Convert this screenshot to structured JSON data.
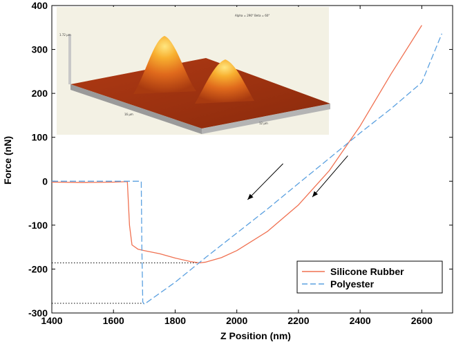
{
  "chart_data": {
    "type": "line",
    "xlabel": "Z Position (nm)",
    "ylabel": "Force (nN)",
    "xlim": [
      1400,
      2700
    ],
    "ylim": [
      -300,
      400
    ],
    "xticks": [
      1400,
      1600,
      1800,
      2000,
      2200,
      2400,
      2600
    ],
    "yticks": [
      -300,
      -200,
      -100,
      0,
      100,
      200,
      300,
      400
    ],
    "grid": false,
    "legend_position": "bottom-right",
    "series": [
      {
        "name": "Silicone Rubber",
        "color": "#f07050",
        "style": "solid",
        "x": [
          1400,
          1500,
          1600,
          1645,
          1652,
          1660,
          1680,
          1700,
          1750,
          1800,
          1850,
          1880,
          1900,
          1950,
          2000,
          2100,
          2200,
          2300,
          2400,
          2500,
          2600
        ],
        "y": [
          -2,
          -3,
          -2,
          -1,
          -100,
          -145,
          -155,
          -158,
          -165,
          -175,
          -183,
          -186,
          -184,
          -174,
          -158,
          -114,
          -54,
          24,
          126,
          244,
          355
        ]
      },
      {
        "name": "Polyester",
        "color": "#5aa0e0",
        "style": "dashed",
        "x": [
          1400,
          1500,
          1600,
          1690,
          1692,
          1695,
          1700,
          1800,
          1900,
          2000,
          2100,
          2200,
          2300,
          2400,
          2500,
          2600,
          2665
        ],
        "y": [
          0,
          0,
          0,
          0,
          -150,
          -275,
          -280,
          -230,
          -173,
          -118,
          -63,
          -5,
          52,
          110,
          165,
          225,
          336
        ]
      }
    ],
    "reference_lines": [
      {
        "y": -186,
        "x_from": 1400,
        "x_to": 1880,
        "style": "dotted"
      },
      {
        "y": -278,
        "x_from": 1400,
        "x_to": 1700,
        "style": "dotted"
      }
    ],
    "arrows": [
      {
        "from": [
          2150,
          40
        ],
        "to": [
          2035,
          -42
        ]
      },
      {
        "from": [
          2360,
          58
        ],
        "to": [
          2245,
          -36
        ]
      }
    ]
  },
  "inset": {
    "top_label": "Alpha = 290°  Beta = 60°",
    "z_label": "1.72 µm",
    "x_label": "16 µm",
    "y_label": "12 µm"
  }
}
